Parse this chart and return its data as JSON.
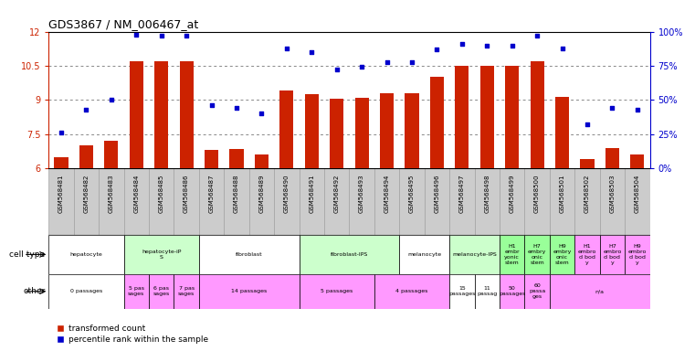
{
  "title": "GDS3867 / NM_006467_at",
  "samples": [
    "GSM568481",
    "GSM568482",
    "GSM568483",
    "GSM568484",
    "GSM568485",
    "GSM568486",
    "GSM568487",
    "GSM568488",
    "GSM568489",
    "GSM568490",
    "GSM568491",
    "GSM568492",
    "GSM568493",
    "GSM568494",
    "GSM568495",
    "GSM568496",
    "GSM568497",
    "GSM568498",
    "GSM568499",
    "GSM568500",
    "GSM568501",
    "GSM568502",
    "GSM568503",
    "GSM568504"
  ],
  "bar_values": [
    6.5,
    7.0,
    7.2,
    10.7,
    10.7,
    10.7,
    6.8,
    6.85,
    6.6,
    9.4,
    9.25,
    9.05,
    9.1,
    9.3,
    9.3,
    10.0,
    10.5,
    10.5,
    10.5,
    10.7,
    9.15,
    6.4,
    6.9,
    6.6
  ],
  "dot_values": [
    26,
    43,
    50,
    98,
    97,
    97,
    46,
    44,
    40,
    88,
    85,
    72,
    74,
    78,
    78,
    87,
    91,
    90,
    90,
    97,
    88,
    32,
    44,
    43
  ],
  "ylim_left": [
    6,
    12
  ],
  "ylim_right": [
    0,
    100
  ],
  "yticks_left": [
    6,
    7.5,
    9,
    10.5,
    12
  ],
  "yticks_right": [
    0,
    25,
    50,
    75,
    100
  ],
  "ytick_labels_right": [
    "0%",
    "25%",
    "50%",
    "75%",
    "100%"
  ],
  "bar_color": "#cc2200",
  "dot_color": "#0000cc",
  "grid_color": "#888888",
  "sample_bg": "#cccccc",
  "cell_type_groups": [
    {
      "label": "hepatocyte",
      "start": 0,
      "end": 2,
      "color": "#ffffff"
    },
    {
      "label": "hepatocyte-iP\nS",
      "start": 3,
      "end": 5,
      "color": "#ccffcc"
    },
    {
      "label": "fibroblast",
      "start": 6,
      "end": 9,
      "color": "#ffffff"
    },
    {
      "label": "fibroblast-IPS",
      "start": 10,
      "end": 13,
      "color": "#ccffcc"
    },
    {
      "label": "melanocyte",
      "start": 14,
      "end": 15,
      "color": "#ffffff"
    },
    {
      "label": "melanocyte-IPS",
      "start": 16,
      "end": 17,
      "color": "#ccffcc"
    },
    {
      "label": "H1\nembr\nyonic\nstem",
      "start": 18,
      "end": 18,
      "color": "#99ff99"
    },
    {
      "label": "H7\nembry\nonic\nstem",
      "start": 19,
      "end": 19,
      "color": "#99ff99"
    },
    {
      "label": "H9\nembry\nonic\nstem",
      "start": 20,
      "end": 20,
      "color": "#99ff99"
    },
    {
      "label": "H1\nembro\nd bod\ny",
      "start": 21,
      "end": 21,
      "color": "#ff99ff"
    },
    {
      "label": "H7\nembro\nd bod\ny",
      "start": 22,
      "end": 22,
      "color": "#ff99ff"
    },
    {
      "label": "H9\nembro\nd bod\ny",
      "start": 23,
      "end": 23,
      "color": "#ff99ff"
    }
  ],
  "other_groups": [
    {
      "label": "0 passages",
      "start": 0,
      "end": 2,
      "color": "#ffffff"
    },
    {
      "label": "5 pas\nsages",
      "start": 3,
      "end": 3,
      "color": "#ff99ff"
    },
    {
      "label": "6 pas\nsages",
      "start": 4,
      "end": 4,
      "color": "#ff99ff"
    },
    {
      "label": "7 pas\nsages",
      "start": 5,
      "end": 5,
      "color": "#ff99ff"
    },
    {
      "label": "14 passages",
      "start": 6,
      "end": 9,
      "color": "#ff99ff"
    },
    {
      "label": "5 passages",
      "start": 10,
      "end": 12,
      "color": "#ff99ff"
    },
    {
      "label": "4 passages",
      "start": 13,
      "end": 15,
      "color": "#ff99ff"
    },
    {
      "label": "15\npassages",
      "start": 16,
      "end": 16,
      "color": "#ffffff"
    },
    {
      "label": "11\npassag",
      "start": 17,
      "end": 17,
      "color": "#ffffff"
    },
    {
      "label": "50\npassages",
      "start": 18,
      "end": 18,
      "color": "#ff99ff"
    },
    {
      "label": "60\npassa\nges",
      "start": 19,
      "end": 19,
      "color": "#ff99ff"
    },
    {
      "label": "n/a",
      "start": 20,
      "end": 23,
      "color": "#ff99ff"
    }
  ]
}
